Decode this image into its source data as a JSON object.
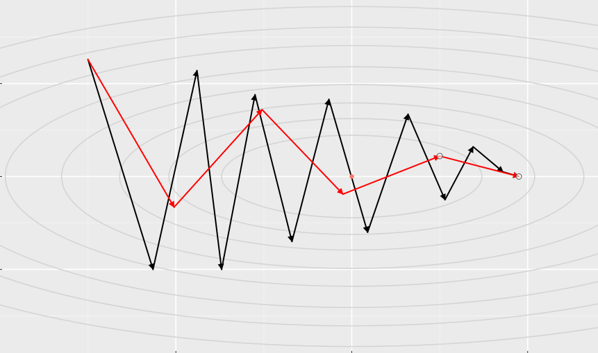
{
  "chart_data": {
    "type": "line",
    "title": "",
    "xlabel": "",
    "ylabel": "",
    "xlim": [
      -2.0,
      1.4
    ],
    "ylim": [
      -1.9,
      1.9
    ],
    "x_major_ticks": [
      -1.0,
      0.0,
      1.0
    ],
    "x_minor_ticks": [
      -1.5,
      -0.5,
      0.5,
      1.5
    ],
    "y_major_ticks": [
      -1.0,
      0.0,
      1.0
    ],
    "y_minor_ticks": [
      -1.5,
      -0.5,
      0.5,
      1.5
    ],
    "grid": true,
    "legend": "none",
    "background": "#ebebeb",
    "contours": {
      "center": [
        0.0,
        0.0
      ],
      "levels_rx": [
        0.74,
        1.04,
        1.32,
        1.65,
        1.97,
        2.35,
        2.68,
        3.05
      ],
      "aspect_ry_over_rx": 0.6,
      "color": "#d4d4d4"
    },
    "minimum": {
      "x": 0.0,
      "y": 0.0,
      "color": "#f8766d"
    },
    "series": [
      {
        "color": "#000000",
        "x": [
          -1.5,
          -1.13,
          -0.88,
          -0.74,
          -0.55,
          -0.34,
          -0.13,
          0.09,
          0.32,
          0.53,
          0.69,
          0.86,
          0.95
        ],
        "y": [
          1.26,
          -1.0,
          1.14,
          -1.0,
          0.88,
          -0.7,
          0.83,
          -0.6,
          0.67,
          -0.25,
          0.32,
          0.05,
          0.0
        ]
      },
      {
        "color": "#ff0000",
        "x": [
          -1.5,
          -1.01,
          -0.51,
          -0.05,
          0.5,
          0.95
        ],
        "y": [
          1.26,
          -0.33,
          0.72,
          -0.19,
          0.22,
          0.0
        ]
      }
    ],
    "open_markers": [
      {
        "x": 0.5,
        "y": 0.22
      },
      {
        "x": 0.95,
        "y": 0.0
      }
    ]
  }
}
